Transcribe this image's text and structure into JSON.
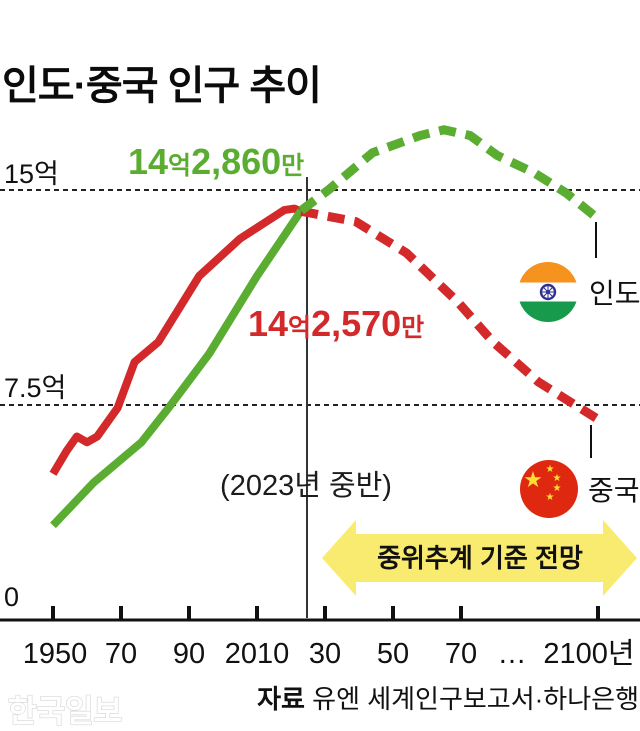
{
  "title": "인도·중국 인구 추이",
  "watermark": "한국일보",
  "source": {
    "prefix": "자료",
    "text": " 유엔 세계인구보고서·하나은행"
  },
  "legend": {
    "india": "인도",
    "china": "중국"
  },
  "annotations": {
    "india_value": {
      "num1": "14",
      "unit1": "억",
      "num2": "2,860",
      "unit2": "만",
      "full": "14억2,860만"
    },
    "china_value": {
      "num1": "14",
      "unit1": "억",
      "num2": "2,570",
      "unit2": "만",
      "full": "14억2,570만"
    },
    "reference_point": "(2023년 중반)",
    "projection_arrow": "중위추계 기준 전망"
  },
  "y_axis": {
    "labels": [
      {
        "text": "15억",
        "value": 15
      },
      {
        "text": "7.5억",
        "value": 7.5
      },
      {
        "text": "0",
        "value": 0
      }
    ]
  },
  "x_axis": {
    "tick_labels": [
      "1950",
      "70",
      "90",
      "2010",
      "30",
      "50",
      "70",
      "2100년"
    ],
    "tick_years": [
      1950,
      1970,
      1990,
      2010,
      2030,
      2050,
      2070,
      2100
    ],
    "ellipsis": "…"
  },
  "icons": {
    "star_glyph": "★"
  },
  "colors": {
    "india_line": "#5BAD32",
    "china_line": "#D3292A",
    "arrow_fill": "#F8EB6F",
    "axis": "#111111",
    "grid": "#222222",
    "flag_saffron": "#F6921E",
    "flag_india_green": "#179A4B",
    "flag_navy": "#2E3192",
    "flag_china_red": "#DE2910",
    "flag_star_yellow": "#FFDE33"
  },
  "chart_data": {
    "type": "line",
    "title": "인도·중국 인구 추이",
    "y_unit": "억 (hundred million people)",
    "y_ticks": [
      0,
      7.5,
      15
    ],
    "ylim": [
      0,
      16
    ],
    "x_ticks": [
      1950,
      1970,
      1990,
      2010,
      2030,
      2050,
      2070,
      2100
    ],
    "x_axis_break_between": [
      2070,
      2100
    ],
    "reference_year_line": 2023,
    "grid": "dashed horizontal at 7.5 and 15",
    "legend_position": "right, flag icons",
    "callouts": {
      "india_2023": "14억2,860만",
      "china_2023": "14억2,570만",
      "reference": "(2023년 중반)",
      "projection_note": "중위추계 기준 전망"
    },
    "series": [
      {
        "id": "china-actual",
        "name": "중국 (China, actual)",
        "style": "solid",
        "color": "#D3292A",
        "points": [
          [
            1950,
            5.1
          ],
          [
            1954,
            5.9
          ],
          [
            1957,
            6.4
          ],
          [
            1960,
            6.2
          ],
          [
            1963,
            6.4
          ],
          [
            1969,
            7.4
          ],
          [
            1974,
            9.0
          ],
          [
            1981,
            9.7
          ],
          [
            1993,
            12.0
          ],
          [
            2005,
            13.3
          ],
          [
            2018,
            14.3
          ],
          [
            2021,
            14.35
          ],
          [
            2023,
            14.257
          ]
        ]
      },
      {
        "id": "india-actual",
        "name": "인도 (India, actual)",
        "style": "solid",
        "color": "#5BAD32",
        "points": [
          [
            1950,
            3.3
          ],
          [
            1962,
            4.8
          ],
          [
            1976,
            6.2
          ],
          [
            1984,
            7.4
          ],
          [
            1996,
            9.3
          ],
          [
            2010,
            12.0
          ],
          [
            2023,
            14.286
          ]
        ]
      },
      {
        "id": "china-projection",
        "name": "중국 전망 (China, projection)",
        "style": "dashed",
        "color": "#D3292A",
        "points": [
          [
            2023,
            14.257
          ],
          [
            2039,
            13.9
          ],
          [
            2054,
            12.8
          ],
          [
            2069,
            11.1
          ],
          [
            2077,
            9.7
          ],
          [
            2087,
            8.3
          ],
          [
            2100,
            7.0
          ]
        ]
      },
      {
        "id": "india-projection",
        "name": "인도 전망 (India, projection)",
        "style": "dashed",
        "color": "#5BAD32",
        "points": [
          [
            2023,
            14.286
          ],
          [
            2031,
            15.0
          ],
          [
            2044,
            16.3
          ],
          [
            2058,
            16.9
          ],
          [
            2065,
            17.1
          ],
          [
            2072,
            16.9
          ],
          [
            2078,
            16.2
          ],
          [
            2086,
            15.6
          ],
          [
            2093,
            14.9
          ],
          [
            2100,
            14.0
          ]
        ]
      }
    ]
  }
}
